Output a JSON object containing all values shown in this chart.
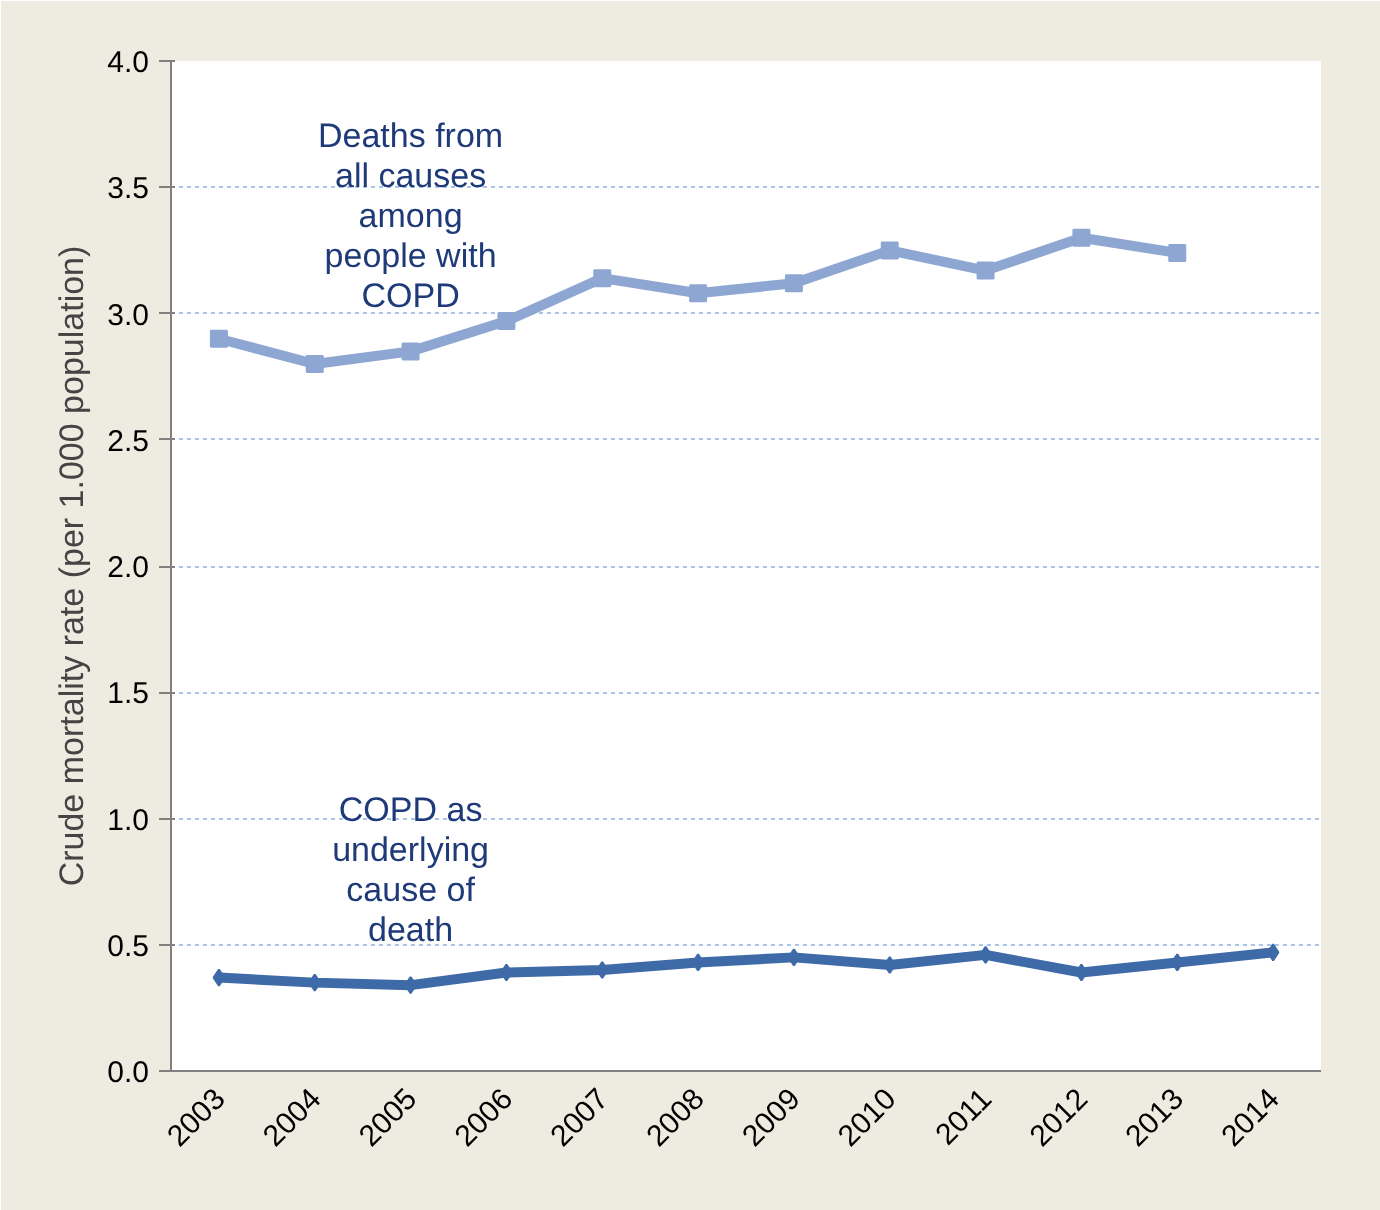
{
  "chart_data": {
    "type": "line",
    "ylabel": "Crude mortality rate (per 1.000 population)",
    "categories": [
      "2003",
      "2004",
      "2005",
      "2006",
      "2007",
      "2008",
      "2009",
      "2010",
      "2011",
      "2012",
      "2013",
      "2014"
    ],
    "series": [
      {
        "name": "Deaths from\nall causes\namong\npeople with\nCOPD",
        "color": "#8ea6d2",
        "marker": "square",
        "values": [
          2.9,
          2.8,
          2.85,
          2.97,
          3.14,
          3.08,
          3.12,
          3.25,
          3.17,
          3.3,
          3.24,
          null
        ]
      },
      {
        "name": "COPD as\nunderlying\ncause of\ndeath",
        "color": "#3f6aa8",
        "marker": "diamond",
        "values": [
          0.37,
          0.35,
          0.34,
          0.39,
          0.4,
          0.43,
          0.45,
          0.42,
          0.46,
          0.39,
          0.43,
          0.47
        ]
      }
    ],
    "ylim": [
      0,
      4.0
    ],
    "yticks": [
      {
        "value": 0,
        "label": "0.0"
      },
      0.5,
      {
        "value": 1,
        "label": "1.0"
      },
      1.5,
      {
        "value": 2,
        "label": "2.0"
      },
      2.5,
      {
        "value": 3,
        "label": "3.0"
      },
      3.5,
      {
        "value": 4,
        "label": "4.0"
      }
    ],
    "grid": "y",
    "line_style": "solid"
  }
}
